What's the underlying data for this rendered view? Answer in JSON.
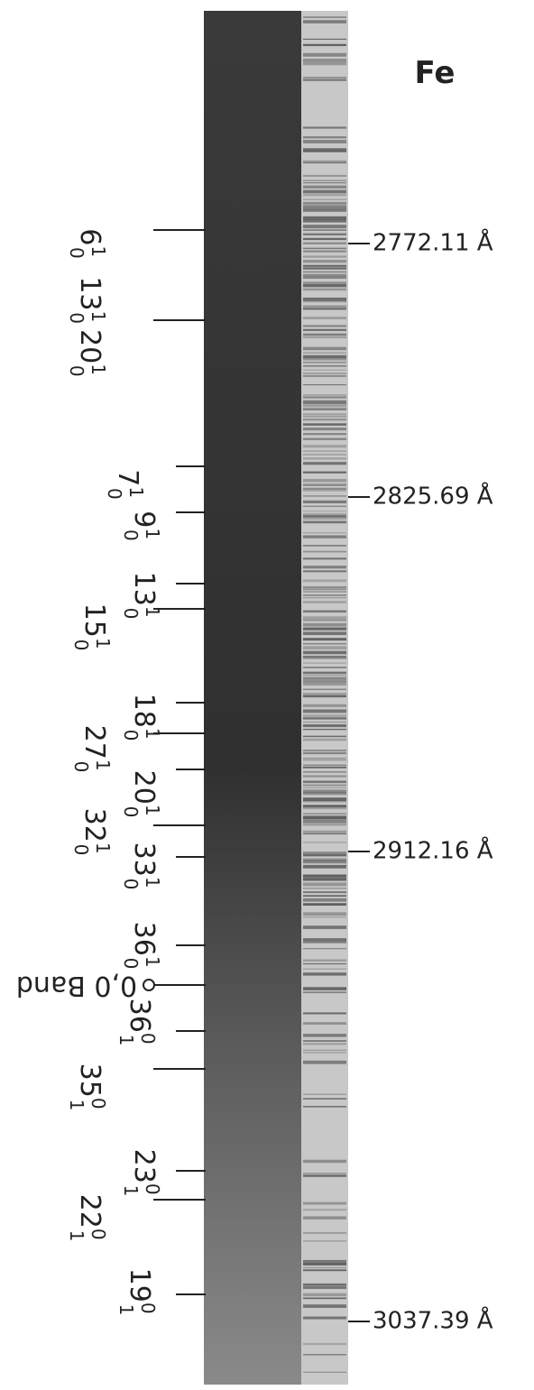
{
  "title": "Fe",
  "wavelengths": [
    "2772.11 Å",
    "2825.69 Å",
    "2912.16 Å",
    "3037.39 Å"
  ],
  "bands": [
    {
      "terms": [
        {
          "n": "6",
          "sup": "1",
          "sub": "0"
        }
      ]
    },
    {
      "terms": [
        {
          "n": "13",
          "sup": "1",
          "sub": "0"
        },
        {
          "n": "20",
          "sup": "1",
          "sub": "0"
        }
      ]
    },
    {
      "terms": [
        {
          "n": "7",
          "sup": "1",
          "sub": "0"
        }
      ]
    },
    {
      "terms": [
        {
          "n": "9",
          "sup": "1",
          "sub": "0"
        }
      ]
    },
    {
      "terms": [
        {
          "n": "13",
          "sup": "1",
          "sub": "0"
        }
      ]
    },
    {
      "terms": [
        {
          "n": "15",
          "sup": "1",
          "sub": "0"
        }
      ]
    },
    {
      "terms": [
        {
          "n": "18",
          "sup": "1",
          "sub": "0"
        }
      ]
    },
    {
      "terms": [
        {
          "n": "27",
          "sup": "1",
          "sub": "0"
        }
      ]
    },
    {
      "terms": [
        {
          "n": "20",
          "sup": "1",
          "sub": "0"
        }
      ]
    },
    {
      "terms": [
        {
          "n": "32",
          "sup": "1",
          "sub": "0"
        }
      ]
    },
    {
      "terms": [
        {
          "n": "33",
          "sup": "1",
          "sub": "0"
        }
      ]
    },
    {
      "terms": [
        {
          "n": "36",
          "sup": "1",
          "sub": "0"
        }
      ]
    },
    {
      "text": "0,0 Band"
    },
    {
      "terms": [
        {
          "n": "36",
          "sup": "0",
          "sub": "1"
        }
      ]
    },
    {
      "terms": [
        {
          "n": "35",
          "sup": "0",
          "sub": "1"
        }
      ]
    },
    {
      "terms": [
        {
          "n": "23",
          "sup": "0",
          "sub": "1"
        }
      ]
    },
    {
      "terms": [
        {
          "n": "22",
          "sup": "0",
          "sub": "1"
        }
      ]
    },
    {
      "terms": [
        {
          "n": "19",
          "sup": "0",
          "sub": "1"
        }
      ]
    }
  ]
}
